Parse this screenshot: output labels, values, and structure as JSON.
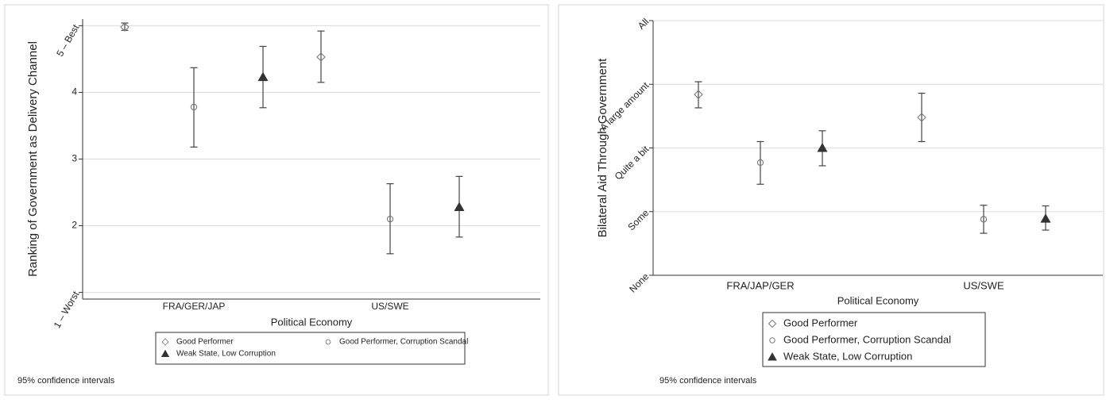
{
  "colors": {
    "frame": "#d4d4d4",
    "grid": "#dcdcdc",
    "axis": "#333333",
    "errorbar": "#444444",
    "marker_light": "#777777",
    "marker_dark": "#333333",
    "background": "#ffffff"
  },
  "chart_data": [
    {
      "type": "scatter",
      "title": "",
      "xlabel": "Political Economy",
      "ylabel": "Ranking of Government as Delivery Channel",
      "categories": [
        "FRA/GER/JAP",
        "US/SWE"
      ],
      "ylim": [
        0.9,
        5.1
      ],
      "yticks": [
        1,
        2,
        3,
        4,
        5
      ],
      "ytick_labels": [
        "1 – Worst",
        "2",
        "3",
        "4",
        "5 – Best"
      ],
      "grid": true,
      "legend_placement": "bottom",
      "legend_columns": 2,
      "note": "95% confidence intervals",
      "series": [
        {
          "name": "Good Performer",
          "marker": "diamond",
          "points": [
            {
              "category": "FRA/GER/JAP",
              "y": 4.98,
              "lo": 4.93,
              "hi": 5.04
            },
            {
              "category": "US/SWE",
              "y": 4.53,
              "lo": 4.15,
              "hi": 4.92
            }
          ]
        },
        {
          "name": "Good Performer, Corruption Scandal",
          "marker": "circle",
          "points": [
            {
              "category": "FRA/GER/JAP",
              "y": 3.78,
              "lo": 3.18,
              "hi": 4.37
            },
            {
              "category": "US/SWE",
              "y": 2.1,
              "lo": 1.58,
              "hi": 2.63
            }
          ]
        },
        {
          "name": "Weak State, Low Corruption",
          "marker": "triangle",
          "points": [
            {
              "category": "FRA/GER/JAP",
              "y": 4.23,
              "lo": 3.77,
              "hi": 4.69
            },
            {
              "category": "US/SWE",
              "y": 2.28,
              "lo": 1.83,
              "hi": 2.74
            }
          ]
        }
      ]
    },
    {
      "type": "scatter",
      "title": "",
      "xlabel": "Political Economy",
      "ylabel": "Bilateral Aid Through Government",
      "categories": [
        "FRA/JAP/GER",
        "US/SWE"
      ],
      "ylim": [
        0,
        4
      ],
      "yticks": [
        0,
        1,
        2,
        3,
        4
      ],
      "ytick_labels": [
        "None",
        "Some",
        "Quite a bit",
        "A large amount",
        "All"
      ],
      "grid": true,
      "legend_placement": "bottom",
      "legend_columns": 1,
      "note": "95% confidence intervals",
      "series": [
        {
          "name": "Good Performer",
          "marker": "diamond",
          "points": [
            {
              "category": "FRA/JAP/GER",
              "y": 2.84,
              "lo": 2.63,
              "hi": 3.04
            },
            {
              "category": "US/SWE",
              "y": 2.48,
              "lo": 2.1,
              "hi": 2.86
            }
          ]
        },
        {
          "name": "Good Performer, Corruption Scandal",
          "marker": "circle",
          "points": [
            {
              "category": "FRA/JAP/GER",
              "y": 1.77,
              "lo": 1.43,
              "hi": 2.1
            },
            {
              "category": "US/SWE",
              "y": 0.88,
              "lo": 0.66,
              "hi": 1.1
            }
          ]
        },
        {
          "name": "Weak State, Low Corruption",
          "marker": "triangle",
          "points": [
            {
              "category": "FRA/JAP/GER",
              "y": 2.0,
              "lo": 1.72,
              "hi": 2.27
            },
            {
              "category": "US/SWE",
              "y": 0.89,
              "lo": 0.71,
              "hi": 1.09
            }
          ]
        }
      ]
    }
  ]
}
